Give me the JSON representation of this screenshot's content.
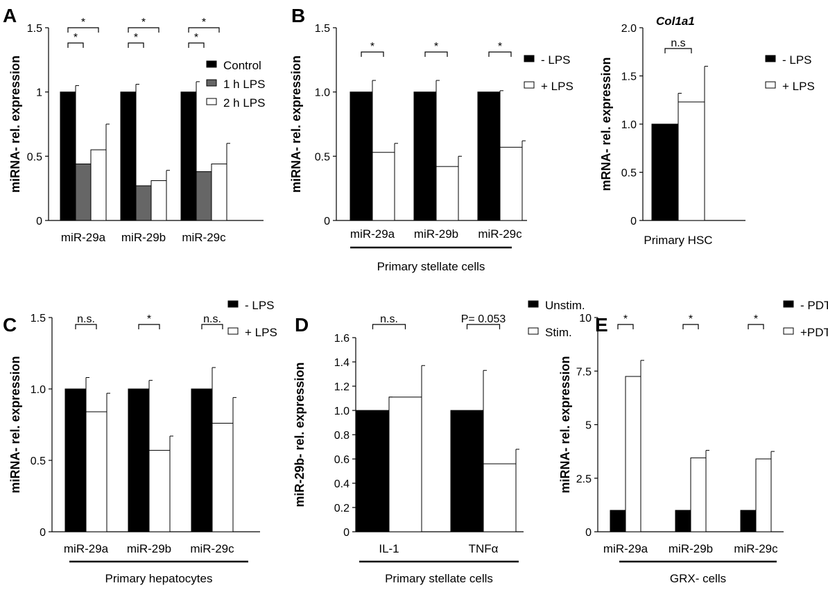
{
  "chart_data": [
    {
      "id": "A",
      "panel_label": "A",
      "type": "bar",
      "title": "",
      "xlabel": "",
      "ylabel": "miRNA- rel. expression",
      "ylim": [
        0,
        1.5
      ],
      "yticks": [
        "0",
        "0.5",
        "1",
        "1.5"
      ],
      "categories": [
        "miR-29a",
        "miR-29b",
        "miR-29c"
      ],
      "series": [
        {
          "name": "Control",
          "color": "#000000",
          "values": [
            1.0,
            1.0,
            1.0
          ],
          "errors": [
            0.05,
            0.06,
            0.08
          ]
        },
        {
          "name": "1 h LPS",
          "color": "#666666",
          "values": [
            0.44,
            0.27,
            0.38
          ],
          "errors": [
            0.07,
            0.03,
            0.05
          ]
        },
        {
          "name": "2 h LPS",
          "color": "#ffffff",
          "values": [
            0.55,
            0.31,
            0.44
          ],
          "errors": [
            0.2,
            0.08,
            0.16
          ]
        }
      ],
      "significance": [
        {
          "category": 0,
          "from": 0,
          "to": 2,
          "label": "*",
          "level": 2
        },
        {
          "category": 0,
          "from": 0,
          "to": 1,
          "label": "*",
          "level": 1
        },
        {
          "category": 1,
          "from": 0,
          "to": 2,
          "label": "*",
          "level": 2
        },
        {
          "category": 1,
          "from": 0,
          "to": 1,
          "label": "*",
          "level": 1
        },
        {
          "category": 2,
          "from": 0,
          "to": 2,
          "label": "*",
          "level": 2
        },
        {
          "category": 2,
          "from": 0,
          "to": 1,
          "label": "*",
          "level": 1
        }
      ],
      "legend_position": "right",
      "group_label": ""
    },
    {
      "id": "B1",
      "panel_label": "B",
      "type": "bar",
      "title": "",
      "xlabel": "",
      "ylabel": "miRNA- rel. expression",
      "ylim": [
        0,
        1.5
      ],
      "yticks": [
        "0",
        "0.5",
        "1.0",
        "1.5"
      ],
      "categories": [
        "miR-29a",
        "miR-29b",
        "miR-29c"
      ],
      "series": [
        {
          "name": "- LPS",
          "color": "#000000",
          "values": [
            1.0,
            1.0,
            1.0
          ],
          "errors": [
            0.09,
            0.09,
            0.01
          ]
        },
        {
          "name": "+ LPS",
          "color": "#ffffff",
          "values": [
            0.53,
            0.42,
            0.57
          ],
          "errors": [
            0.07,
            0.08,
            0.05
          ]
        }
      ],
      "significance": [
        {
          "category": 0,
          "from": 0,
          "to": 1,
          "label": "*",
          "level": 1
        },
        {
          "category": 1,
          "from": 0,
          "to": 1,
          "label": "*",
          "level": 1
        },
        {
          "category": 2,
          "from": 0,
          "to": 1,
          "label": "*",
          "level": 1
        }
      ],
      "legend_position": "right",
      "group_label": "Primary stellate cells"
    },
    {
      "id": "B2",
      "panel_label": "",
      "type": "bar",
      "title": "Col1a1",
      "xlabel": "",
      "ylabel": "mRNA- rel. expression",
      "ylim": [
        0,
        2.0
      ],
      "yticks": [
        "0",
        "0.5",
        "1.0",
        "1.5",
        "2.0"
      ],
      "categories": [
        ""
      ],
      "series": [
        {
          "name": "- LPS",
          "color": "#000000",
          "values": [
            1.0
          ],
          "errors": [
            0.32
          ]
        },
        {
          "name": "+ LPS",
          "color": "#ffffff",
          "values": [
            1.23
          ],
          "errors": [
            0.37
          ]
        }
      ],
      "significance": [
        {
          "category": 0,
          "from": 0,
          "to": 1,
          "label": "n.s",
          "level": 1
        }
      ],
      "legend_position": "right",
      "group_label": "Primary HSC"
    },
    {
      "id": "C",
      "panel_label": "C",
      "type": "bar",
      "title": "",
      "xlabel": "",
      "ylabel": "miRNA- rel. expression",
      "ylim": [
        0,
        1.5
      ],
      "yticks": [
        "0",
        "0.5",
        "1.0",
        "1.5"
      ],
      "categories": [
        "miR-29a",
        "miR-29b",
        "miR-29c"
      ],
      "series": [
        {
          "name": "- LPS",
          "color": "#000000",
          "values": [
            1.0,
            1.0,
            1.0
          ],
          "errors": [
            0.08,
            0.06,
            0.15
          ]
        },
        {
          "name": "+ LPS",
          "color": "#ffffff",
          "values": [
            0.84,
            0.57,
            0.76
          ],
          "errors": [
            0.13,
            0.1,
            0.18
          ]
        }
      ],
      "significance": [
        {
          "category": 0,
          "from": 0,
          "to": 1,
          "label": "n.s.",
          "level": 1
        },
        {
          "category": 1,
          "from": 0,
          "to": 1,
          "label": "*",
          "level": 1
        },
        {
          "category": 2,
          "from": 0,
          "to": 1,
          "label": "n.s.",
          "level": 1
        }
      ],
      "legend_position": "top-right",
      "group_label": "Primary hepatocytes"
    },
    {
      "id": "D",
      "panel_label": "D",
      "type": "bar",
      "title": "",
      "xlabel": "",
      "ylabel": "miR-29b- rel. expression",
      "ylim": [
        0,
        1.6
      ],
      "yticks": [
        "0",
        "0.2",
        "0.4",
        "0.6",
        "0.8",
        "1.0",
        "1.2",
        "1.4",
        "1.6"
      ],
      "categories": [
        "IL-1",
        "TNFα"
      ],
      "series": [
        {
          "name": "Unstim.",
          "color": "#000000",
          "values": [
            1.0,
            1.0
          ],
          "errors": [
            0.11,
            0.33
          ]
        },
        {
          "name": "Stim.",
          "color": "#ffffff",
          "values": [
            1.11,
            0.56
          ],
          "errors": [
            0.26,
            0.12
          ]
        }
      ],
      "significance": [
        {
          "category": 0,
          "from": 0,
          "to": 1,
          "label": "n.s.",
          "level": 1
        },
        {
          "category": 1,
          "from": 0,
          "to": 1,
          "label": "P= 0.053",
          "level": 1
        }
      ],
      "legend_position": "top-right",
      "group_label": "Primary stellate cells"
    },
    {
      "id": "E",
      "panel_label": "E",
      "type": "bar",
      "title": "",
      "xlabel": "",
      "ylabel": "miRNA- rel. expression",
      "ylim": [
        0,
        10
      ],
      "yticks": [
        "0",
        "2.5",
        "5",
        "7.5",
        "10"
      ],
      "categories": [
        "miR-29a",
        "miR-29b",
        "miR-29c"
      ],
      "series": [
        {
          "name": "- PDTC",
          "color": "#000000",
          "values": [
            1.0,
            1.0,
            1.0
          ],
          "errors": [
            0.02,
            0.06,
            0.25
          ]
        },
        {
          "name": "+PDTC",
          "color": "#ffffff",
          "values": [
            7.25,
            3.45,
            3.4
          ],
          "errors": [
            0.75,
            0.35,
            0.35
          ]
        }
      ],
      "significance": [
        {
          "category": 0,
          "from": 0,
          "to": 1,
          "label": "*",
          "level": 1
        },
        {
          "category": 1,
          "from": 0,
          "to": 1,
          "label": "*",
          "level": 1
        },
        {
          "category": 2,
          "from": 0,
          "to": 1,
          "label": "*",
          "level": 1
        }
      ],
      "legend_position": "top-right",
      "group_label": "GRX- cells"
    }
  ]
}
